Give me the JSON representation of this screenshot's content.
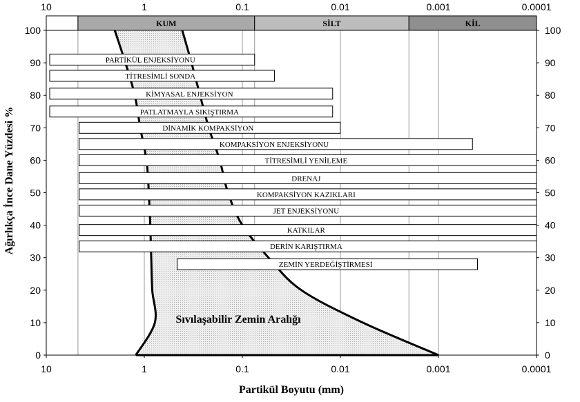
{
  "chart_data": {
    "type": "bar",
    "x_scale": "log-reversed",
    "xlim": [
      10,
      0.0001
    ],
    "ylim": [
      0,
      100
    ],
    "x_ticks": [
      "10",
      "1",
      "0.1",
      "0.01",
      "0.001",
      "0.0001"
    ],
    "x_tick_values": [
      10,
      1,
      0.1,
      0.01,
      0.001,
      0.0001
    ],
    "y_ticks": [
      "0",
      "10",
      "20",
      "30",
      "40",
      "50",
      "60",
      "70",
      "80",
      "90",
      "100"
    ],
    "y_tick_values": [
      0,
      10,
      20,
      30,
      40,
      50,
      60,
      70,
      80,
      90,
      100
    ],
    "xlabel": "Partikül Boyutu (mm)",
    "ylabel": "Ağırlıkça İnce Dane Yüzdesi %",
    "grid": "vertical",
    "soil_bands": [
      {
        "label": "KUM",
        "x_from": 4.75,
        "x_to": 0.075,
        "color": "#a9a9a9"
      },
      {
        "label": "SİLT",
        "x_from": 0.075,
        "x_to": 0.002,
        "color": "#bdbdbd"
      },
      {
        "label": "KİL",
        "x_from": 0.002,
        "x_to": 0.0001,
        "color": "#8f8f8f"
      }
    ],
    "series": [
      {
        "label": "PARTİKÜL ENJEKSİYONU",
        "x_from": 10,
        "x_to": 0.075,
        "y": 91.0
      },
      {
        "label": "TİTRESİMLİ SONDA",
        "x_from": 10,
        "x_to": 0.047,
        "y": 86.0
      },
      {
        "label": "KİMYASAL ENJEKSİYON",
        "x_from": 10,
        "x_to": 0.012,
        "y": 80.5
      },
      {
        "label": "PATLATMAYLA SIKIŞTIRMA",
        "x_from": 10,
        "x_to": 0.012,
        "y": 75.0
      },
      {
        "label": "DİNAMİK KOMPAKSİYON",
        "x_from": 5,
        "x_to": 0.01,
        "y": 70.0
      },
      {
        "label": "KOMPAKSİYON ENJEKSİYONU",
        "x_from": 5,
        "x_to": 0.00045,
        "y": 65.0
      },
      {
        "label": "TİTRESİMLİ YENİLEME",
        "x_from": 5,
        "x_to": 0.0001,
        "y": 60.0
      },
      {
        "label": "DRENAJ",
        "x_from": 5,
        "x_to": 0.0001,
        "y": 54.5
      },
      {
        "label": "KOMPAKSİYON KAZIKLARI",
        "x_from": 5,
        "x_to": 0.0001,
        "y": 49.5
      },
      {
        "label": "JET ENJEKSİYONU",
        "x_from": 5,
        "x_to": 0.0001,
        "y": 44.5
      },
      {
        "label": "KATKILAR",
        "x_from": 5,
        "x_to": 0.0001,
        "y": 38.5
      },
      {
        "label": "DERİN KARIŞTIRMA",
        "x_from": 5,
        "x_to": 0.0001,
        "y": 33.5
      },
      {
        "label": "ZEMİN YERDEĞİŞTİRMESİ",
        "x_from": 0.5,
        "x_to": 0.0004,
        "y": 28.0
      }
    ],
    "region": {
      "label": "Sıvılaşabilir Zemin Aralığı",
      "coarse_boundary": [
        [
          2.0,
          100
        ],
        [
          1.56,
          90
        ],
        [
          1.25,
          80
        ],
        [
          1.1,
          70
        ],
        [
          0.95,
          60
        ],
        [
          0.9,
          50
        ],
        [
          0.87,
          40
        ],
        [
          0.85,
          30
        ],
        [
          0.83,
          20
        ],
        [
          0.78,
          10
        ],
        [
          1.22,
          0
        ]
      ],
      "fine_boundary": [
        [
          0.41,
          100
        ],
        [
          0.33,
          90
        ],
        [
          0.27,
          80
        ],
        [
          0.22,
          70
        ],
        [
          0.17,
          60
        ],
        [
          0.14,
          50
        ],
        [
          0.1,
          40
        ],
        [
          0.054,
          30
        ],
        [
          0.025,
          20
        ],
        [
          0.0059,
          10
        ],
        [
          0.001,
          0
        ]
      ]
    }
  }
}
